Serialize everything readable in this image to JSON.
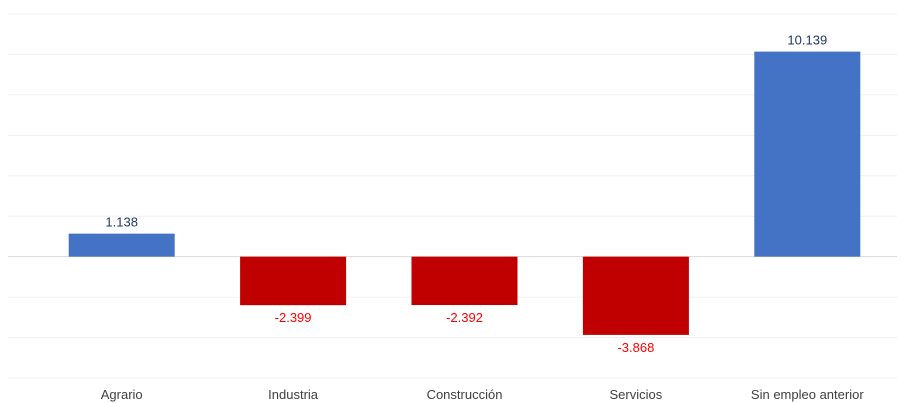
{
  "chart_data": {
    "type": "bar",
    "title": "",
    "xlabel": "",
    "ylabel": "",
    "categories": [
      "Agrario",
      "Industria",
      "Construcción",
      "Servicios",
      "Sin empleo anterior"
    ],
    "values": [
      1138,
      -2399,
      -2392,
      -3868,
      10139
    ],
    "value_labels": [
      "1.138",
      "-2.399",
      "-2.392",
      "-3.868",
      "10.139"
    ],
    "ylim": [
      -6000,
      12000
    ],
    "grid": true,
    "legend": "none",
    "colors": {
      "positive": "#4472c4",
      "negative": "#c00000",
      "positive_label": "#1f3864",
      "negative_label": "#ff0000"
    }
  }
}
